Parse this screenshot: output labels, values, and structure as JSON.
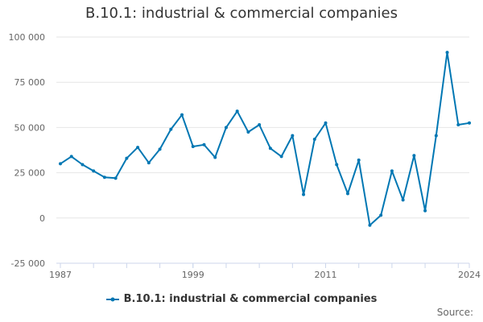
{
  "chart_data": {
    "type": "line",
    "title": "B.10.1: industrial & commercial companies",
    "xlabel": "",
    "ylabel": "",
    "ylim": [
      -25000,
      100000
    ],
    "yticks": [
      -25000,
      0,
      25000,
      50000,
      75000,
      100000
    ],
    "ytick_labels": [
      "-25 000",
      "0",
      "25 000",
      "50 000",
      "75 000",
      "100 000"
    ],
    "xlim": [
      1987,
      2024
    ],
    "xticks": [
      1987,
      1999,
      2011,
      2024
    ],
    "xtick_labels": [
      "1987",
      "1999",
      "2011",
      "2024"
    ],
    "grid": true,
    "legend_position": "bottom",
    "series": [
      {
        "name": "B.10.1: industrial & commercial companies",
        "color": "#0077b3",
        "x": [
          1987,
          1988,
          1989,
          1990,
          1991,
          1992,
          1993,
          1994,
          1995,
          1996,
          1997,
          1998,
          1999,
          2000,
          2001,
          2002,
          2003,
          2004,
          2005,
          2006,
          2007,
          2008,
          2009,
          2010,
          2011,
          2012,
          2013,
          2014,
          2015,
          2016,
          2017,
          2018,
          2019,
          2020,
          2021,
          2022,
          2023,
          2024
        ],
        "values": [
          30000,
          34000,
          29500,
          26000,
          22500,
          22000,
          33000,
          39000,
          30500,
          38000,
          49000,
          57000,
          39500,
          40500,
          33500,
          50000,
          59000,
          47500,
          51500,
          38500,
          34000,
          45500,
          13000,
          43500,
          52500,
          29500,
          13500,
          32000,
          -4000,
          1500,
          26000,
          10000,
          34500,
          4000,
          45500,
          91500,
          51500,
          52500
        ]
      }
    ]
  },
  "legend": {
    "label": "B.10.1: industrial & commercial companies"
  },
  "source": {
    "label": "Source:"
  }
}
